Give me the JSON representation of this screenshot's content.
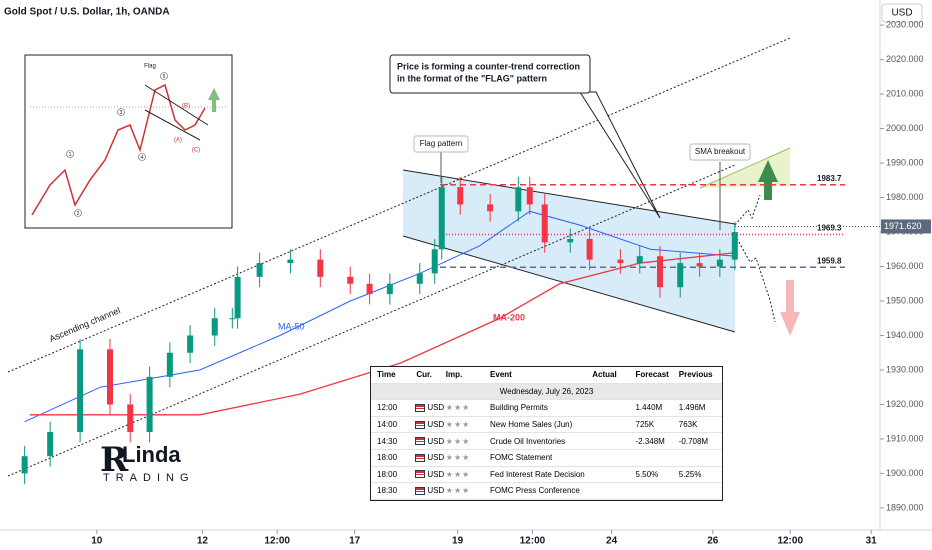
{
  "header": {
    "title": "Gold Spot / U.S. Dollar, 1h, OANDA",
    "currency": "USD"
  },
  "chart_data": {
    "type": "candlestick",
    "x": [
      2.8,
      5.7,
      9.1,
      12.5,
      14.8,
      17,
      19.3,
      21.6,
      24.4,
      26.4,
      27,
      29.5,
      33,
      36.4,
      39.8,
      42,
      44.3,
      47.7,
      49.4,
      50.2,
      52.3,
      55.7,
      58.9,
      60.2,
      61.9,
      64.8,
      67,
      70.5,
      72.7,
      75,
      77.3,
      79.5,
      81.8,
      83.5
    ],
    "open": [
      1900,
      1905,
      1912,
      1936,
      1920,
      1912,
      1928,
      1935,
      1940,
      1945,
      1945,
      1957,
      1961,
      1962,
      1957,
      1955,
      1952,
      1955,
      1958,
      1965,
      1983,
      1978,
      1976,
      1983,
      1978,
      1967,
      1968,
      1962,
      1961,
      1963,
      1954,
      1961,
      1960,
      1962
    ],
    "high": [
      1908,
      1915,
      1939,
      1939,
      1923,
      1931,
      1938,
      1943,
      1948,
      1948,
      1960,
      1964,
      1965,
      1965,
      1960,
      1958,
      1958,
      1961,
      1968,
      1986,
      1986,
      1981,
      1986,
      1986,
      1981,
      1971,
      1971,
      1965,
      1966,
      1966,
      1964,
      1964,
      1965,
      1973
    ],
    "low": [
      1897,
      1902,
      1909,
      1917,
      1909,
      1909,
      1925,
      1932,
      1937,
      1942,
      1942,
      1954,
      1958,
      1954,
      1952,
      1949,
      1949,
      1952,
      1955,
      1962,
      1975,
      1973,
      1973,
      1975,
      1964,
      1964,
      1959,
      1958,
      1958,
      1951,
      1951,
      1957,
      1957,
      1959
    ],
    "close": [
      1905,
      1912,
      1936,
      1920,
      1912,
      1928,
      1935,
      1940,
      1945,
      1945,
      1957,
      1961,
      1962,
      1957,
      1955,
      1952,
      1955,
      1958,
      1965,
      1983,
      1978,
      1976,
      1983,
      1978,
      1967,
      1968,
      1962,
      1961,
      1963,
      1954,
      1961,
      1960,
      1962,
      1970
    ],
    "up_color": "#089981",
    "down_color": "#f23645",
    "xlim": [
      0,
      100
    ],
    "xticks": [
      {
        "value": 11,
        "label": "10"
      },
      {
        "value": 23,
        "label": "12"
      },
      {
        "value": 31.5,
        "label": "12:00"
      },
      {
        "value": 40.3,
        "label": "17"
      },
      {
        "value": 52,
        "label": "19"
      },
      {
        "value": 60.5,
        "label": "12:00"
      },
      {
        "value": 69.5,
        "label": "24"
      },
      {
        "value": 81,
        "label": "26"
      },
      {
        "value": 89.8,
        "label": "12:00"
      },
      {
        "value": 99,
        "label": "31"
      }
    ],
    "ylim": [
      1883.6,
      2033.8
    ],
    "yticks": [
      {
        "value": 1890,
        "label": "1890.000"
      },
      {
        "value": 1900,
        "label": "1900.000"
      },
      {
        "value": 1910,
        "label": "1910.000"
      },
      {
        "value": 1920,
        "label": "1920.000"
      },
      {
        "value": 1930,
        "label": "1930.000"
      },
      {
        "value": 1940,
        "label": "1940.000"
      },
      {
        "value": 1950,
        "label": "1950.000"
      },
      {
        "value": 1960,
        "label": "1960.000"
      },
      {
        "value": 1970,
        "label": "1970.000"
      },
      {
        "value": 1980,
        "label": "1980.000"
      },
      {
        "value": 1990,
        "label": "1990.000"
      },
      {
        "value": 2000,
        "label": "2000.000"
      },
      {
        "value": 2010,
        "label": "2010.000"
      },
      {
        "value": 2020,
        "label": "2020.000"
      },
      {
        "value": 2030,
        "label": "2030.000"
      }
    ],
    "last_price": {
      "value": 1971.62,
      "label": "1971.620"
    },
    "levels": [
      1983.7,
      1969.3,
      1959.8
    ],
    "level_colors": [
      "#f23645",
      "#f23645",
      "#5b6f8c"
    ],
    "series": [
      {
        "name": "MA-50",
        "color": "#2962ff",
        "x": [
          2.8,
          11.4,
          22.7,
          31.8,
          39.8,
          47.7,
          54.5,
          60.2,
          65.9,
          73.9,
          83.5
        ],
        "values": [
          1915,
          1925,
          1930,
          1940,
          1950,
          1958,
          1966,
          1976,
          1972,
          1965,
          1963
        ]
      },
      {
        "name": "MA-200",
        "color": "#f23645",
        "x": [
          3.4,
          22.7,
          34.1,
          45.5,
          56.8,
          63.6,
          72.7,
          83.5
        ],
        "values": [
          1917,
          1917,
          1923,
          1932,
          1945,
          1955,
          1961,
          1964
        ]
      }
    ],
    "annotations": {
      "callout": [
        "Price is forming a counter-trend correction",
        "in the format of the \"FLAG\" pattern"
      ],
      "flag": "Flag pattern",
      "sma": "SMA breakout",
      "channel": "Ascending channel"
    }
  },
  "inset": {
    "title": "Flag",
    "waves": [
      "1",
      "2",
      "3",
      "4",
      "5"
    ],
    "corrections": [
      "(A)",
      "(B)",
      "(C)"
    ]
  },
  "logo": [
    "R",
    "Linda",
    "TRADING"
  ],
  "table": {
    "columns": [
      "Time",
      "Cur.",
      "Imp.",
      "Event",
      "Actual",
      "Forecast",
      "Previous"
    ],
    "date": "Wednesday, July 26, 2023",
    "rows": [
      {
        "time": "12:00",
        "cur": "USD",
        "event": "Building Permits",
        "forecast": "1.440M",
        "previous": "1.496M"
      },
      {
        "time": "14:00",
        "cur": "USD",
        "event": "New Home Sales (Jun)",
        "forecast": "725K",
        "previous": "763K"
      },
      {
        "time": "14:30",
        "cur": "USD",
        "event": "Crude Oil Inventories",
        "forecast": "-2.348M",
        "previous": "-0.708M"
      },
      {
        "time": "18:00",
        "cur": "USD",
        "event": "FOMC Statement"
      },
      {
        "time": "18:00",
        "cur": "USD",
        "event": "Fed Interest Rate Decision",
        "forecast": "5.50%",
        "previous": "5.25%"
      },
      {
        "time": "18:30",
        "cur": "USD",
        "event": "FOMC Press Conference"
      }
    ]
  }
}
